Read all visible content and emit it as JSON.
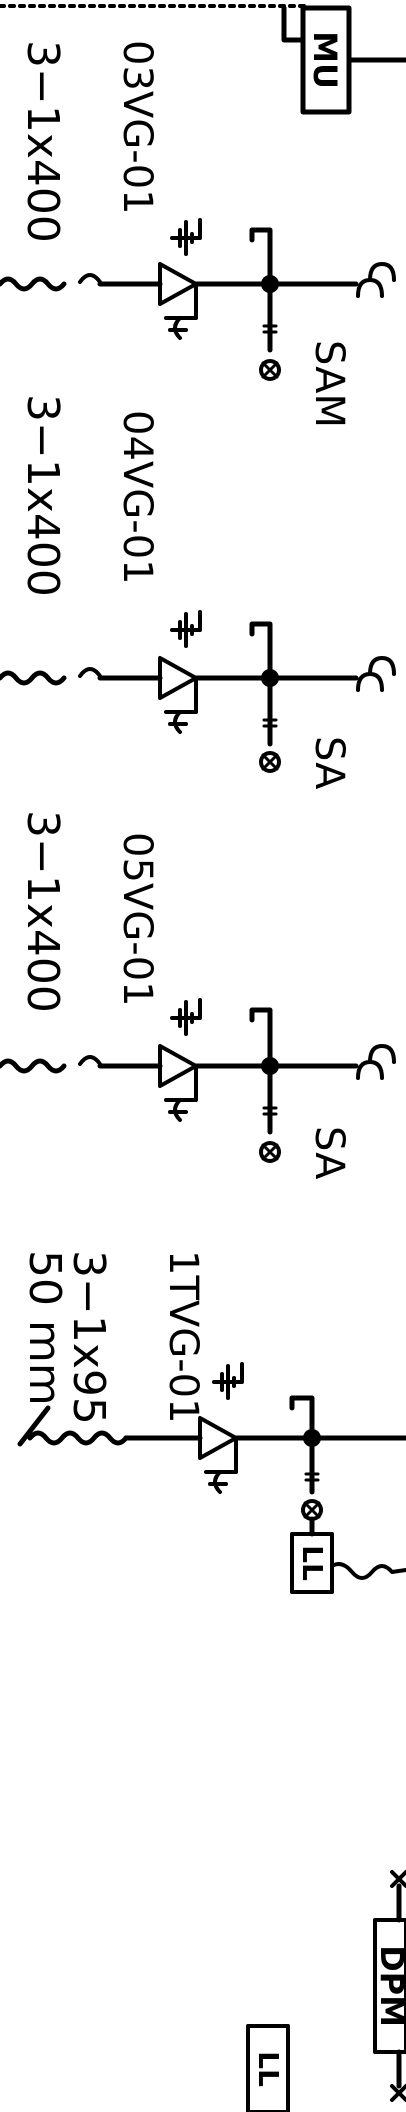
{
  "feeders": [
    {
      "id": "03VG-01",
      "cable": "3−1x400",
      "tag": "SAM"
    },
    {
      "id": "04VG-01",
      "cable": "3−1x400",
      "tag": "SA"
    },
    {
      "id": "05VG-01",
      "cable": "3−1x400",
      "tag": "SA"
    },
    {
      "id": "1TVG-01",
      "cable": "3−1x95",
      "cable_extra": "50 mm",
      "box": "LL"
    }
  ],
  "boxes": {
    "top": "MU",
    "bottom": "DPM",
    "bottom_left": "LL"
  }
}
